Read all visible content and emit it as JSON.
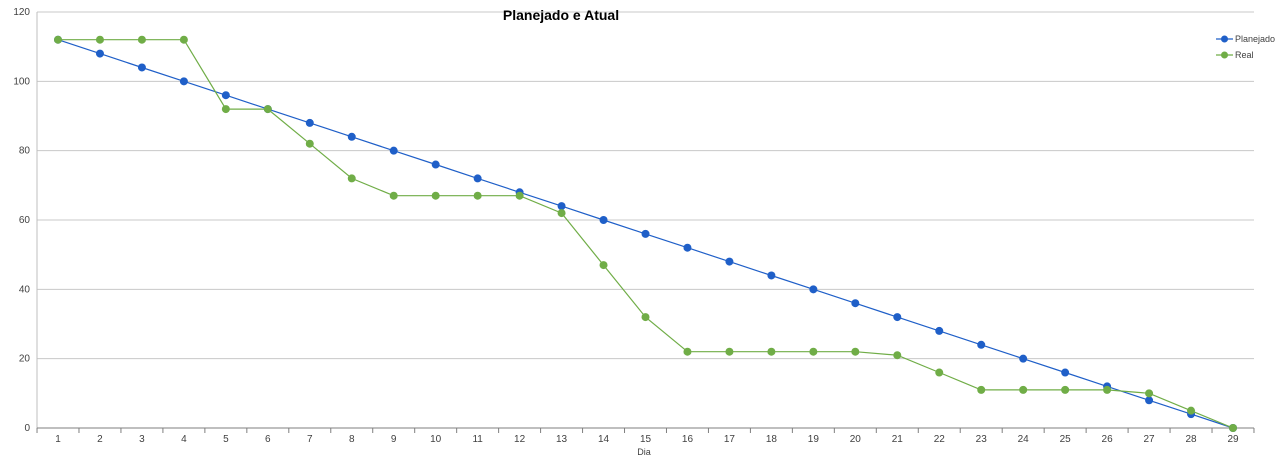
{
  "chart_data": {
    "type": "line",
    "title": "Planejado e Atual",
    "xlabel": "Dia",
    "ylabel": "",
    "ylim": [
      0,
      120
    ],
    "yticks": [
      0,
      20,
      40,
      60,
      80,
      100,
      120
    ],
    "categories": [
      "1",
      "2",
      "3",
      "4",
      "5",
      "6",
      "7",
      "8",
      "9",
      "10",
      "11",
      "12",
      "13",
      "14",
      "15",
      "16",
      "17",
      "18",
      "19",
      "20",
      "21",
      "22",
      "23",
      "24",
      "25",
      "26",
      "27",
      "28",
      "29"
    ],
    "grid": true,
    "legend_position": "top-right",
    "series": [
      {
        "name": "Planejado",
        "color": "#1f5fc8",
        "values": [
          112,
          108,
          104,
          100,
          96,
          92,
          88,
          84,
          80,
          76,
          72,
          68,
          64,
          60,
          56,
          52,
          48,
          44,
          40,
          36,
          32,
          28,
          24,
          20,
          16,
          12,
          8,
          4,
          0
        ]
      },
      {
        "name": "Real",
        "color": "#70ad47",
        "values": [
          112,
          112,
          112,
          112,
          92,
          92,
          82,
          72,
          67,
          67,
          67,
          67,
          62,
          47,
          32,
          22,
          22,
          22,
          22,
          22,
          21,
          16,
          11,
          11,
          11,
          11,
          10,
          5,
          0
        ]
      }
    ]
  }
}
